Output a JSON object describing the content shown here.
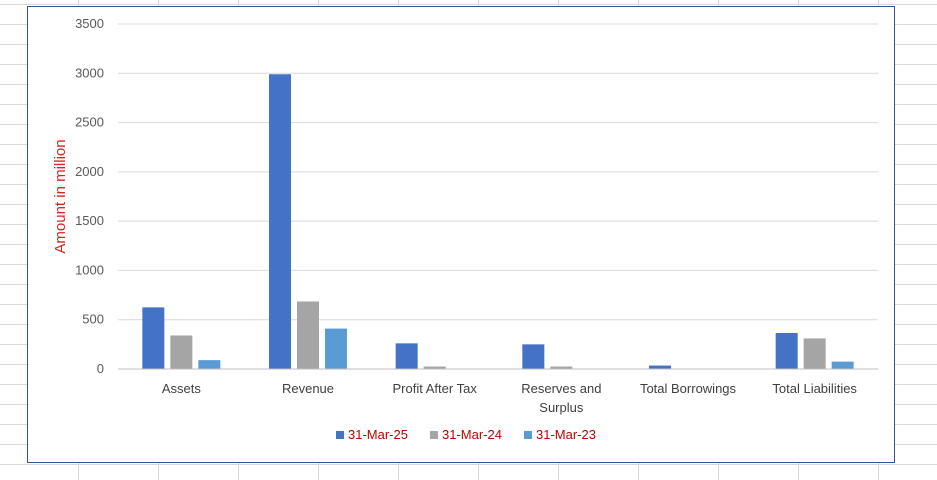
{
  "chart_data": {
    "type": "bar",
    "title": "",
    "xlabel": "",
    "ylabel": "Amount in million",
    "ylim": [
      0,
      3500
    ],
    "yticks": [
      0,
      500,
      1000,
      1500,
      2000,
      2500,
      3000,
      3500
    ],
    "grid": true,
    "legend_position": "bottom",
    "categories": [
      "Assets",
      "Revenue",
      "Profit After Tax",
      "Reserves and Surplus",
      "Total Borrowings",
      "Total Liabilities"
    ],
    "category_lines": [
      [
        "Assets"
      ],
      [
        "Revenue"
      ],
      [
        "Profit After Tax"
      ],
      [
        "Reserves and",
        "Surplus"
      ],
      [
        "Total Borrowings"
      ],
      [
        "Total Liabilities"
      ]
    ],
    "series": [
      {
        "name": "31-Mar-25",
        "color": "#4472c4",
        "values": [
          625,
          2990,
          260,
          250,
          35,
          365
        ]
      },
      {
        "name": "31-Mar-24",
        "color": "#a5a5a5",
        "values": [
          340,
          685,
          25,
          25,
          0,
          310
        ]
      },
      {
        "name": "31-Mar-23",
        "color": "#5b9bd5",
        "values": [
          90,
          410,
          0,
          0,
          0,
          75
        ]
      }
    ]
  }
}
